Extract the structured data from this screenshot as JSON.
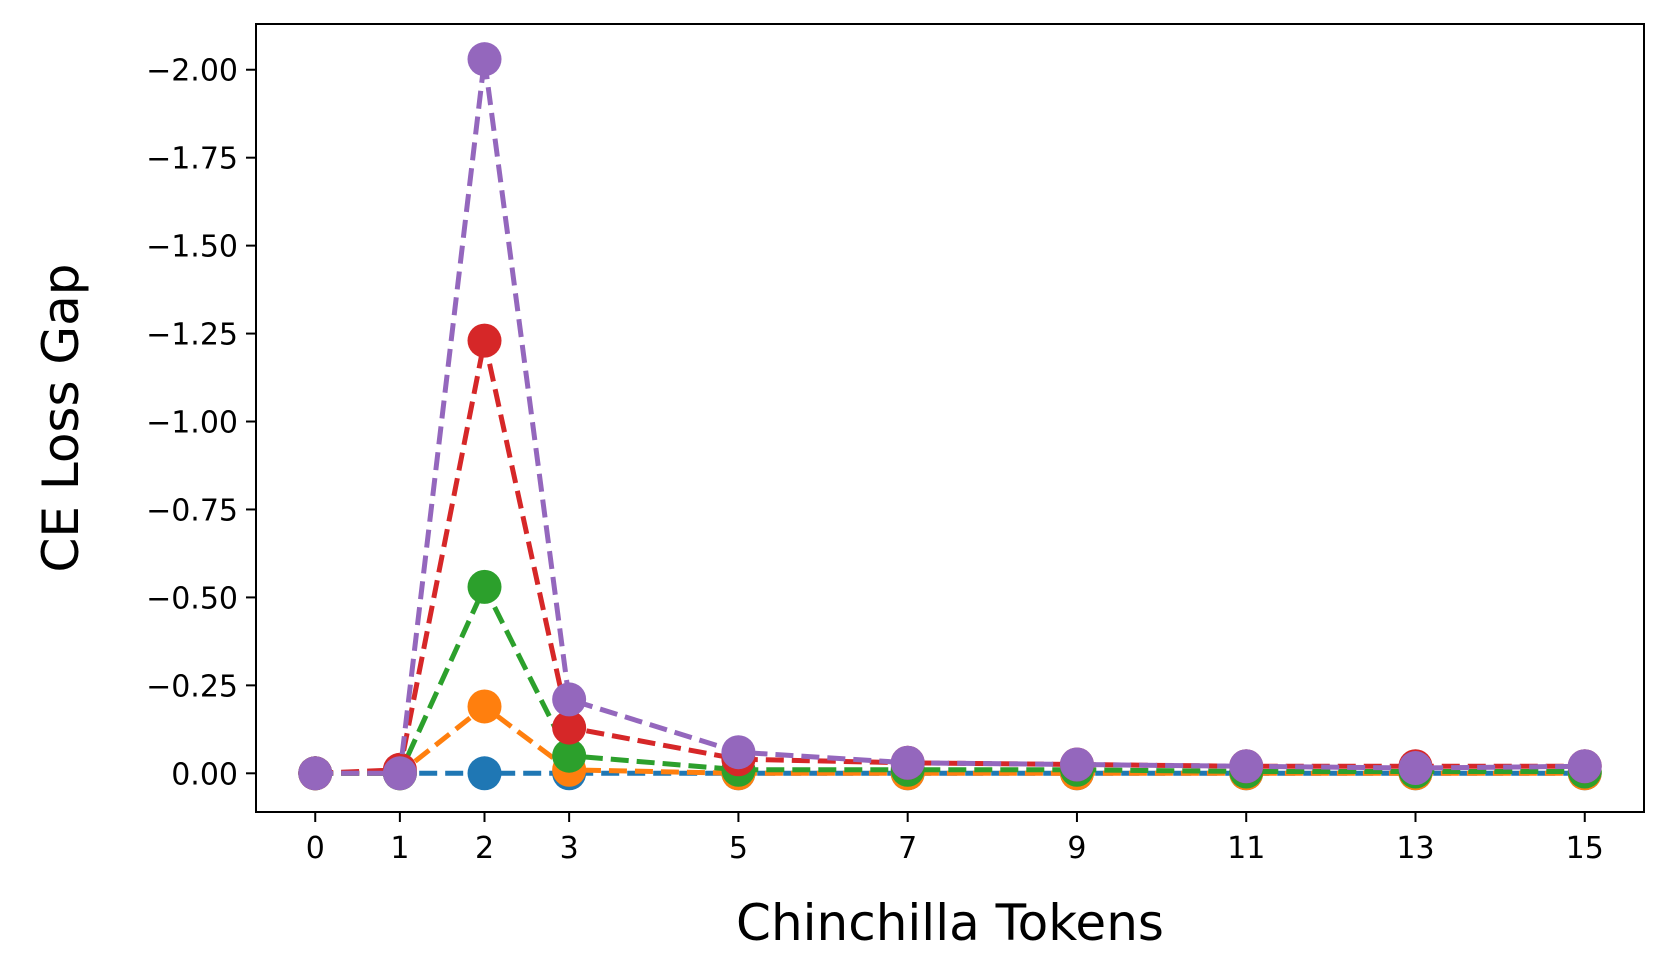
{
  "chart_data": {
    "type": "line",
    "title": "",
    "xlabel": "Chinchilla Tokens",
    "ylabel": "CE Loss Gap",
    "x": [
      0,
      1,
      2,
      3,
      5,
      7,
      9,
      11,
      13,
      15
    ],
    "xticks": [
      0,
      1,
      2,
      3,
      5,
      7,
      9,
      11,
      13,
      15
    ],
    "xtick_labels": [
      "0",
      "1",
      "2",
      "3",
      "5",
      "7",
      "9",
      "11",
      "13",
      "15"
    ],
    "yticks": [
      0.0,
      -0.25,
      -0.5,
      -0.75,
      -1.0,
      -1.25,
      -1.5,
      -1.75,
      -2.0
    ],
    "ytick_labels": [
      "0.00",
      "−0.25",
      "−0.50",
      "−0.75",
      "−1.00",
      "−1.25",
      "−1.50",
      "−1.75",
      "−2.00"
    ],
    "xlim": [
      -0.7,
      15.7
    ],
    "ylim": [
      0.11,
      -2.13
    ],
    "y_axis_inverted": true,
    "grid": false,
    "legend": "none",
    "series": [
      {
        "color": "#1f77b4",
        "values": [
          0.0,
          0.0,
          0.0,
          0.0,
          0.0,
          0.0,
          0.0,
          0.0,
          0.0,
          0.0
        ]
      },
      {
        "color": "#ff7f0e",
        "values": [
          0.0,
          0.0,
          -0.19,
          -0.01,
          0.0,
          0.0,
          0.0,
          0.0,
          0.0,
          0.0
        ]
      },
      {
        "color": "#2ca02c",
        "values": [
          0.0,
          0.0,
          -0.53,
          -0.05,
          -0.01,
          -0.01,
          -0.01,
          -0.005,
          -0.005,
          -0.005
        ]
      },
      {
        "color": "#d62728",
        "values": [
          0.0,
          -0.01,
          -1.23,
          -0.13,
          -0.04,
          -0.03,
          -0.025,
          -0.02,
          -0.02,
          -0.02
        ]
      },
      {
        "color": "#9467bd",
        "values": [
          0.0,
          0.0,
          -2.03,
          -0.21,
          -0.06,
          -0.03,
          -0.025,
          -0.02,
          -0.015,
          -0.02
        ]
      }
    ]
  }
}
